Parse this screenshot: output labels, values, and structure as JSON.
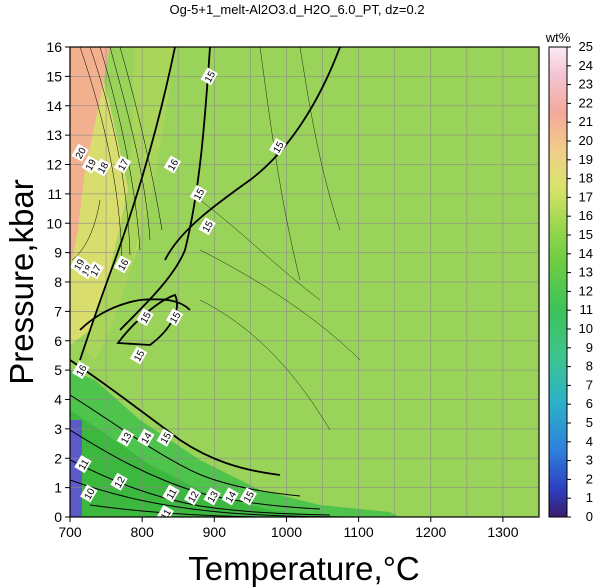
{
  "chart_data": {
    "type": "heatmap",
    "title": "Og-5+1_melt-Al2O3.d_H2O_6.0_PT, dz=0.2",
    "xlabel": "Temperature,°C",
    "ylabel": "Pressure,kbar",
    "xlim": [
      700,
      1350
    ],
    "ylim": [
      0,
      16
    ],
    "x_ticks": [
      "700",
      "800",
      "900",
      "1000",
      "1100",
      "1200",
      "1300"
    ],
    "y_ticks": [
      "0",
      "1",
      "2",
      "3",
      "4",
      "5",
      "6",
      "7",
      "8",
      "9",
      "10",
      "11",
      "12",
      "13",
      "14",
      "15",
      "16"
    ],
    "grid": true,
    "colorbar": {
      "label": "wt%",
      "range": [
        0,
        25
      ],
      "ticks": [
        "0",
        "1",
        "2",
        "3",
        "4",
        "5",
        "6",
        "7",
        "8",
        "9",
        "10",
        "11",
        "12",
        "13",
        "14",
        "15",
        "16",
        "17",
        "18",
        "19",
        "20",
        "21",
        "22",
        "23",
        "24",
        "25"
      ],
      "position": "right"
    },
    "contour_labels": [
      {
        "text": "20",
        "t": 714,
        "p": 12.4
      },
      {
        "text": "19",
        "t": 728,
        "p": 12.0
      },
      {
        "text": "18",
        "t": 745,
        "p": 11.9
      },
      {
        "text": "17",
        "t": 773,
        "p": 12.0
      },
      {
        "text": "16",
        "t": 842,
        "p": 12.0
      },
      {
        "text": "15",
        "t": 893,
        "p": 15.0
      },
      {
        "text": "15",
        "t": 988,
        "p": 12.6
      },
      {
        "text": "15",
        "t": 878,
        "p": 11.0
      },
      {
        "text": "15",
        "t": 890,
        "p": 9.9
      },
      {
        "text": "19",
        "t": 712,
        "p": 8.6
      },
      {
        "text": "18",
        "t": 723,
        "p": 8.4
      },
      {
        "text": "17",
        "t": 735,
        "p": 8.4
      },
      {
        "text": "16",
        "t": 773,
        "p": 8.6
      },
      {
        "text": "15",
        "t": 804,
        "p": 6.8
      },
      {
        "text": "15",
        "t": 845,
        "p": 6.8
      },
      {
        "text": "15",
        "t": 795,
        "p": 5.5
      },
      {
        "text": "16",
        "t": 715,
        "p": 5.0
      },
      {
        "text": "13",
        "t": 777,
        "p": 2.7
      },
      {
        "text": "14",
        "t": 805,
        "p": 2.7
      },
      {
        "text": "15",
        "t": 832,
        "p": 2.7
      },
      {
        "text": "11",
        "t": 718,
        "p": 1.8
      },
      {
        "text": "12",
        "t": 768,
        "p": 1.2
      },
      {
        "text": "10",
        "t": 726,
        "p": 0.8
      },
      {
        "text": "11",
        "t": 840,
        "p": 0.8
      },
      {
        "text": "12",
        "t": 870,
        "p": 0.7
      },
      {
        "text": "13",
        "t": 897,
        "p": 0.7
      },
      {
        "text": "14",
        "t": 922,
        "p": 0.7
      },
      {
        "text": "15",
        "t": 947,
        "p": 0.7
      },
      {
        "text": "11",
        "t": 832,
        "p": 0.1
      }
    ]
  }
}
